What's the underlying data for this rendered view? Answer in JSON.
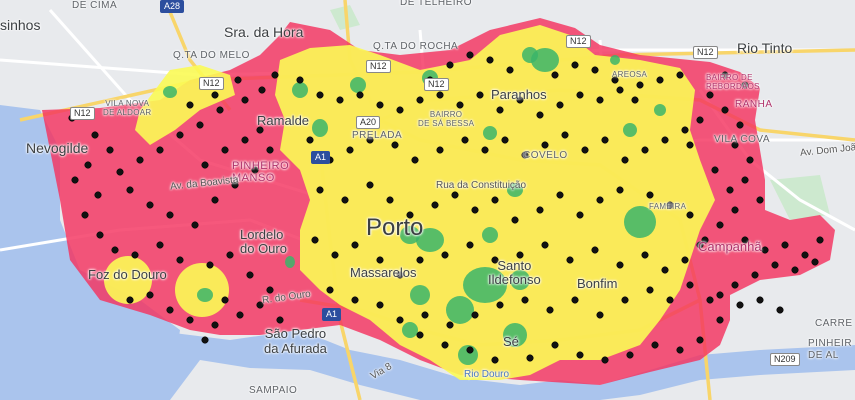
{
  "map": {
    "labels": {
      "de_cima": "DE CIMA",
      "de_telheiro": "DE TELHEIRO",
      "matosinhos": "sinhos",
      "sra_da_hora": "Sra. da Hora",
      "rio_tinto": "Rio Tinto",
      "qta_melo": "Q.TA DO MELO",
      "qta_rocha": "Q.TA DO ROCHA",
      "vila_nova_aldoar": "VILA NOVA\nDE ALDOAR",
      "nevogilde": "Nevogilde",
      "ramalde": "Ramalde",
      "paranhos": "Paranhos",
      "prelada": "PRELADA",
      "bairro_sa_bessa": "BAIRRO\nDE SÁ BESSA",
      "covelo": "COVELO",
      "pinheiro_manso": "PINHEIRO\nMANSO",
      "av_boavista": "Av. da Boavista",
      "rua_constituicao": "Rua da Constituição",
      "porto": "Porto",
      "lordelo_ouro": "Lordelo\ndo Ouro",
      "massarelos": "Massarelos",
      "santo_ildefonso": "Santo\nIldefonso",
      "bonfim": "Bonfim",
      "foz_douro": "Foz do Douro",
      "sao_pedro_afurada": "São Pedro\nda Afurada",
      "se": "Sé",
      "rio_douro": "Rio Douro",
      "via_8": "Via 8",
      "sampaio": "SAMPAIO",
      "bairro_rebordaos": "BAIRRO DE\nREBORDÃOS",
      "ranha": "RANHA",
      "vila_cova": "VILA COVA",
      "av_dom_joao": "Av. Dom Joã",
      "campanha": "Campanhã",
      "carre": "CARRE",
      "pinheiro_alm": "PINHEIR\nDE AL",
      "areosa": "AREOSA",
      "fameira": "FAMEIRA",
      "rua_da_ouro": "R. do Ouro"
    },
    "road_shields": {
      "n12_west": "N12",
      "n12_north": "N12",
      "n12_center": "N12",
      "n12_east": "N12",
      "a20": "A20",
      "a1": "A1",
      "a28": "A28",
      "n209": "N209"
    },
    "colors": {
      "water": "#aac4ed",
      "land": "#e8eaed",
      "coverage_red": "#f4335f",
      "coverage_yellow": "#fbfb55",
      "coverage_green": "#3bb56a",
      "points": "#111111",
      "major_road": "#f8d56a"
    }
  }
}
